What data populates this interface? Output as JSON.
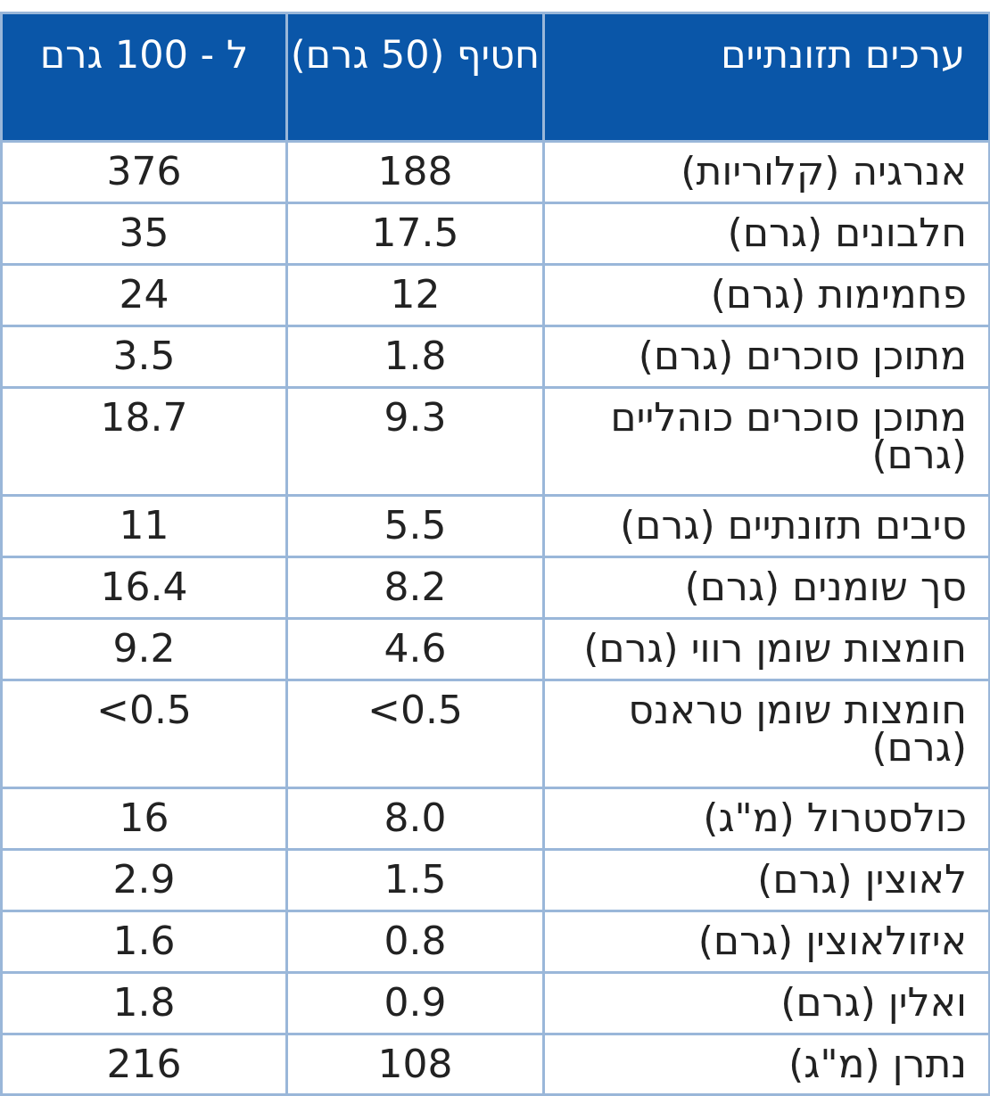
{
  "table": {
    "headers": {
      "name": "ערכים תזונתיים",
      "serving": "חטיף (50 גרם)",
      "per100": "ל - 100 גרם"
    },
    "rows": [
      {
        "name": "אנרגיה (קלוריות)",
        "serving": "188",
        "per100": "376"
      },
      {
        "name": "חלבונים (גרם)",
        "serving": "17.5",
        "per100": "35"
      },
      {
        "name": "פחמימות (גרם)",
        "serving": "12",
        "per100": "24"
      },
      {
        "name": "מתוכן סוכרים (גרם)",
        "serving": "1.8",
        "per100": "3.5"
      },
      {
        "name": "מתוכן סוכרים כוהליים (גרם)",
        "serving": "9.3",
        "per100": "18.7"
      },
      {
        "name": "סיבים תזונתיים (גרם)",
        "serving": "5.5",
        "per100": "11"
      },
      {
        "name": "סך שומנים (גרם)",
        "serving": "8.2",
        "per100": "16.4"
      },
      {
        "name": "חומצות שומן רווי (גרם)",
        "serving": "4.6",
        "per100": "9.2"
      },
      {
        "name": "חומצות שומן טראנס (גרם)",
        "serving": "<0.5",
        "per100": "<0.5"
      },
      {
        "name": "כולסטרול (מ\"ג)",
        "serving": "8.0",
        "per100": "16"
      },
      {
        "name": "לאוצין (גרם)",
        "serving": "1.5",
        "per100": "2.9"
      },
      {
        "name": "איזולאוצין (גרם)",
        "serving": "0.8",
        "per100": "1.6"
      },
      {
        "name": "ואלין (גרם)",
        "serving": "0.9",
        "per100": "1.8"
      },
      {
        "name": "נתרן (מ\"ג)",
        "serving": "108",
        "per100": "216"
      }
    ]
  }
}
